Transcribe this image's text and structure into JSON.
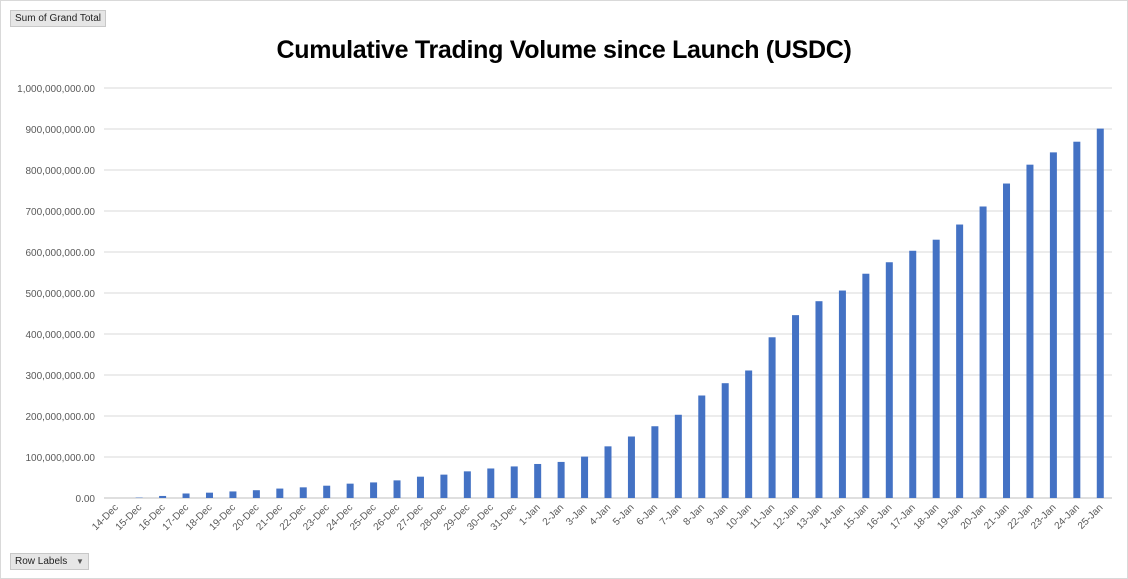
{
  "pivot": {
    "value_field": "Sum of Grand Total",
    "row_field": "Row Labels"
  },
  "chart_data": {
    "type": "bar",
    "title": "Cumulative Trading Volume since Launch (USDC)",
    "xlabel": "",
    "ylabel": "",
    "ylim": [
      0,
      1000000000
    ],
    "ytick_step": 100000000,
    "grid": true,
    "legend": "none",
    "bar_color": "#4472C4",
    "categories": [
      "14-Dec",
      "15-Dec",
      "16-Dec",
      "17-Dec",
      "18-Dec",
      "19-Dec",
      "20-Dec",
      "21-Dec",
      "22-Dec",
      "23-Dec",
      "24-Dec",
      "25-Dec",
      "26-Dec",
      "27-Dec",
      "28-Dec",
      "29-Dec",
      "30-Dec",
      "31-Dec",
      "1-Jan",
      "2-Jan",
      "3-Jan",
      "4-Jan",
      "5-Jan",
      "6-Jan",
      "7-Jan",
      "8-Jan",
      "9-Jan",
      "10-Jan",
      "11-Jan",
      "12-Jan",
      "13-Jan",
      "14-Jan",
      "15-Jan",
      "16-Jan",
      "17-Jan",
      "18-Jan",
      "19-Jan",
      "20-Jan",
      "21-Jan",
      "22-Jan",
      "23-Jan",
      "24-Jan",
      "25-Jan"
    ],
    "values": [
      0,
      1000000,
      5000000,
      11000000,
      13000000,
      16000000,
      19000000,
      23000000,
      26000000,
      30000000,
      35000000,
      38000000,
      43000000,
      52000000,
      57000000,
      65000000,
      72000000,
      77000000,
      83000000,
      88000000,
      101000000,
      126000000,
      150000000,
      175000000,
      203000000,
      250000000,
      280000000,
      311000000,
      392000000,
      446000000,
      480000000,
      506000000,
      547000000,
      575000000,
      603000000,
      630000000,
      667000000,
      711000000,
      767000000,
      813000000,
      843000000,
      869000000,
      901000000
    ]
  }
}
